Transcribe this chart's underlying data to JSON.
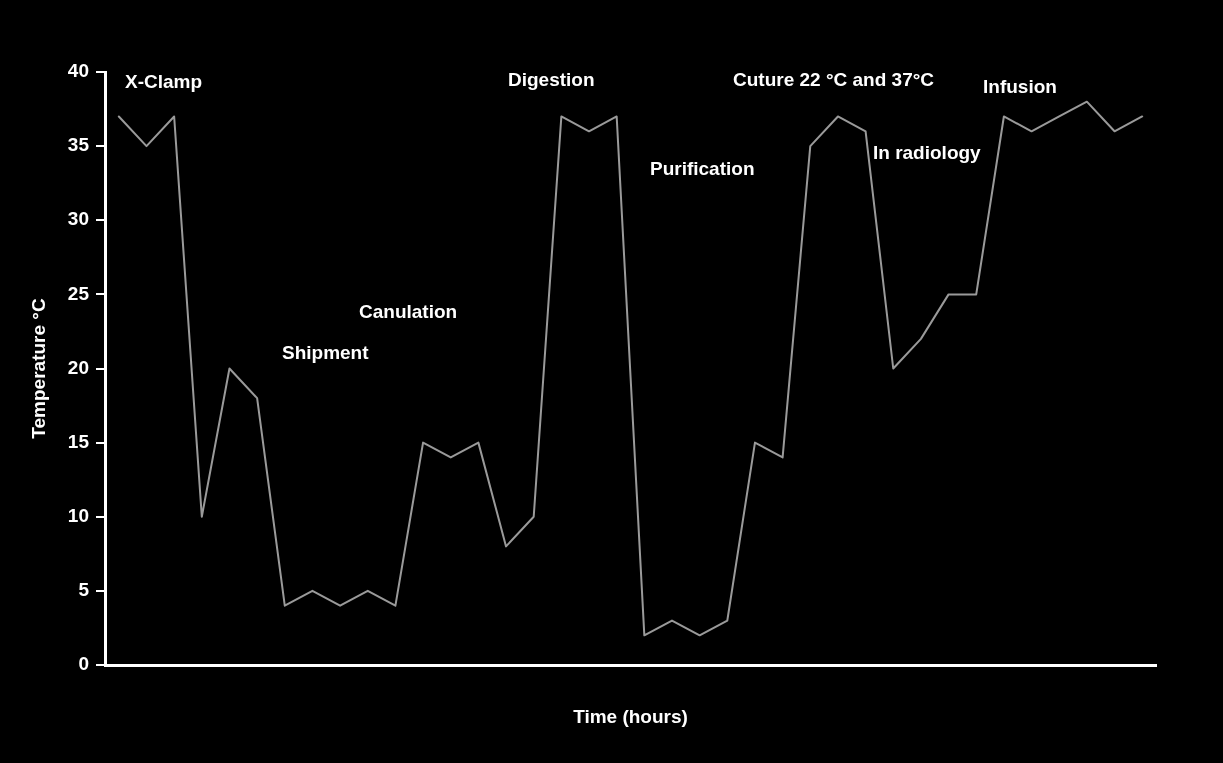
{
  "chart_data": {
    "type": "line",
    "xlabel": "Time (hours)",
    "ylabel": "Temperature °C",
    "categories": [
      null,
      null,
      null,
      null,
      null,
      null,
      null,
      null,
      null,
      null,
      null,
      null,
      null,
      null,
      null,
      null,
      null,
      null,
      null,
      null,
      null,
      null,
      null,
      null,
      null,
      null,
      null,
      null,
      null,
      null,
      null,
      null,
      null,
      null,
      null,
      null,
      null,
      null
    ],
    "series": [
      {
        "color": "#9a9a9a",
        "values": [
          37,
          35,
          37,
          10,
          20,
          18,
          4,
          5,
          4,
          5,
          4,
          15,
          14,
          15,
          8,
          10,
          37,
          36,
          37,
          2,
          3,
          2,
          3,
          15,
          14,
          35,
          37,
          36,
          20,
          22,
          25,
          25,
          37,
          36,
          37,
          38,
          36,
          37
        ]
      }
    ],
    "ylim": [
      0,
      40
    ],
    "yticks": [
      0,
      5,
      10,
      15,
      20,
      25,
      30,
      35,
      40
    ],
    "grid": false,
    "legend": false,
    "marker": "none",
    "line_style": "solid",
    "tick_labels": "y",
    "annotations": [
      "X-Clamp",
      "Shipment",
      "Canulation",
      "Digestion",
      "Purification",
      "Cuture 22 °C and 37°C",
      "In radiology",
      "Infusion"
    ]
  }
}
